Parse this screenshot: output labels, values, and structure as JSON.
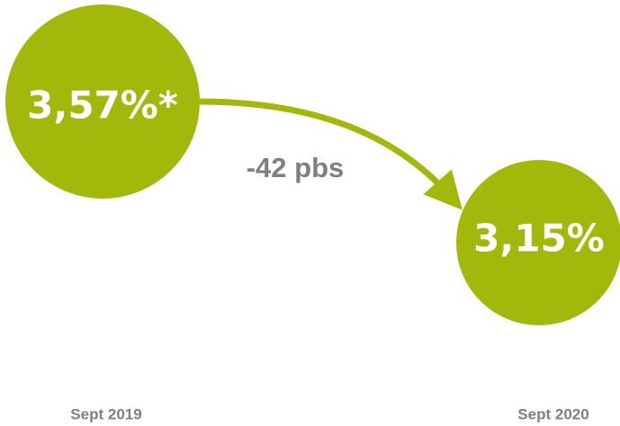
{
  "nodes": [
    {
      "label": "3,57%*",
      "date": "Sept 2019"
    },
    {
      "label": "3,15%",
      "date": "Sept 2020"
    }
  ],
  "change": {
    "label": "-42 pbs"
  }
}
